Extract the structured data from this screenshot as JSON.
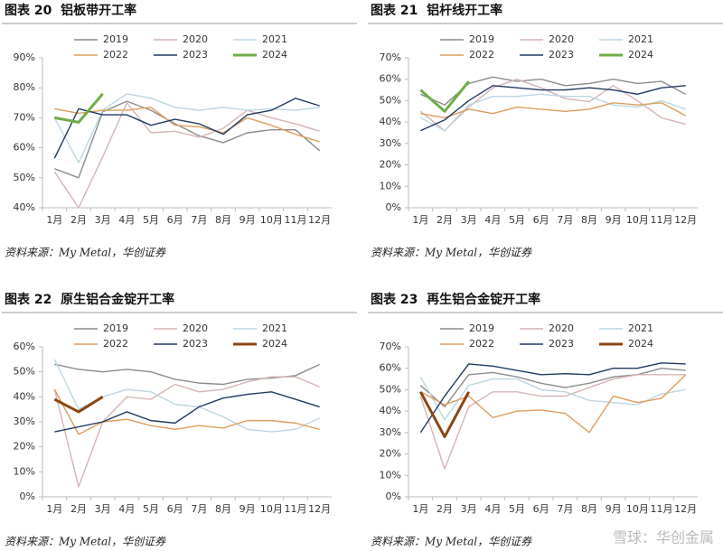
{
  "chart_data": [
    {
      "type": "line",
      "title": "图表 20  铝板带开工率",
      "source": "资料来源：My Metal，华创证券",
      "categories": [
        "1月",
        "2月",
        "3月",
        "4月",
        "5月",
        "6月",
        "7月",
        "8月",
        "9月",
        "10月",
        "11月",
        "12月"
      ],
      "ylim": [
        40,
        90
      ],
      "yticks": [
        {
          "value": 40,
          "label": "40%"
        },
        {
          "value": 50,
          "label": "50%"
        },
        {
          "value": 60,
          "label": "60%"
        },
        {
          "value": 70,
          "label": "70%"
        },
        {
          "value": 80,
          "label": "80%"
        },
        {
          "value": 90,
          "label": "90%"
        }
      ],
      "series": [
        {
          "name": "2019",
          "color": "#8c8c8c",
          "values": [
            53,
            50,
            72,
            75.5,
            72.5,
            68,
            64,
            61.7,
            65,
            66,
            66,
            59
          ]
        },
        {
          "name": "2020",
          "color": "#d6b4b4",
          "values": [
            52,
            40,
            57,
            75,
            65,
            65.5,
            63.5,
            66.5,
            72.5,
            70,
            68,
            65.5
          ]
        },
        {
          "name": "2021",
          "color": "#bcd6e3",
          "values": [
            70,
            55,
            72.5,
            78,
            76.5,
            73.5,
            72.5,
            73.5,
            72.5,
            73,
            72.5,
            73.5
          ]
        },
        {
          "name": "2022",
          "color": "#dc9d5c",
          "values": [
            73,
            71.5,
            72.5,
            72.5,
            73.5,
            67.5,
            67,
            65,
            70,
            67.5,
            64.5,
            62
          ]
        },
        {
          "name": "2023",
          "color": "#1f3b63",
          "values": [
            56.5,
            73,
            71,
            71,
            67.5,
            69.5,
            68,
            64.5,
            71,
            72.5,
            76.5,
            74
          ]
        },
        {
          "name": "2024",
          "color": "#70ad47",
          "values": [
            70,
            68.5,
            78,
            null,
            null,
            null,
            null,
            null,
            null,
            null,
            null,
            null
          ]
        }
      ]
    },
    {
      "type": "line",
      "title": "图表 21  铝杆线开工率",
      "source": "资料来源：My Metal，华创证券",
      "categories": [
        "1月",
        "2月",
        "3月",
        "4月",
        "5月",
        "6月",
        "7月",
        "8月",
        "9月",
        "10月",
        "11月",
        "12月"
      ],
      "ylim": [
        0,
        70
      ],
      "yticks": [
        {
          "value": 0,
          "label": "0%"
        },
        {
          "value": 10,
          "label": "10%"
        },
        {
          "value": 20,
          "label": "20%"
        },
        {
          "value": 30,
          "label": "30%"
        },
        {
          "value": 40,
          "label": "40%"
        },
        {
          "value": 50,
          "label": "50%"
        },
        {
          "value": 60,
          "label": "60%"
        },
        {
          "value": 70,
          "label": "70%"
        }
      ],
      "series": [
        {
          "name": "2019",
          "color": "#8c8c8c",
          "values": [
            53,
            48,
            58,
            61,
            59,
            60,
            57,
            58,
            60,
            58,
            59,
            53
          ]
        },
        {
          "name": "2020",
          "color": "#d6b4b4",
          "values": [
            45,
            36,
            47,
            56,
            60,
            56,
            51,
            49.5,
            57,
            50,
            42,
            39
          ]
        },
        {
          "name": "2021",
          "color": "#bcd6e3",
          "values": [
            42,
            36,
            48,
            52,
            52,
            53,
            52,
            52,
            48,
            47,
            50,
            46
          ]
        },
        {
          "name": "2022",
          "color": "#dc9d5c",
          "values": [
            44,
            42,
            46,
            44,
            47,
            46,
            45,
            46,
            49,
            48,
            49,
            43
          ]
        },
        {
          "name": "2023",
          "color": "#1f3b63",
          "values": [
            36,
            41,
            50,
            57,
            56,
            55,
            55,
            56,
            55,
            53,
            56,
            57
          ]
        },
        {
          "name": "2024",
          "color": "#70ad47",
          "values": [
            55,
            45,
            59,
            null,
            null,
            null,
            null,
            null,
            null,
            null,
            null,
            null
          ]
        }
      ]
    },
    {
      "type": "line",
      "title": "图表 22  原生铝合金锭开工率",
      "source": "资料来源：My Metal，华创证券",
      "categories": [
        "1月",
        "2月",
        "3月",
        "4月",
        "5月",
        "6月",
        "7月",
        "8月",
        "9月",
        "10月",
        "11月",
        "12月"
      ],
      "ylim": [
        0,
        60
      ],
      "yticks": [
        {
          "value": 0,
          "label": "0%"
        },
        {
          "value": 10,
          "label": "10%"
        },
        {
          "value": 20,
          "label": "20%"
        },
        {
          "value": 30,
          "label": "30%"
        },
        {
          "value": 40,
          "label": "40%"
        },
        {
          "value": 50,
          "label": "50%"
        },
        {
          "value": 60,
          "label": "60%"
        }
      ],
      "series": [
        {
          "name": "2019",
          "color": "#8c8c8c",
          "values": [
            53,
            51,
            50,
            51,
            50,
            47,
            45.5,
            45,
            47,
            47.5,
            48.5,
            53
          ]
        },
        {
          "name": "2020",
          "color": "#d6b4b4",
          "values": [
            43,
            4,
            30,
            40,
            39,
            45,
            42,
            43,
            46,
            48,
            48,
            44
          ]
        },
        {
          "name": "2021",
          "color": "#bcd6e3",
          "values": [
            55,
            35,
            40,
            43,
            42,
            37,
            36,
            32,
            27,
            26,
            27,
            31.5
          ]
        },
        {
          "name": "2022",
          "color": "#dc9d5c",
          "values": [
            43,
            25,
            30,
            31,
            28.5,
            27,
            28.5,
            27.5,
            30.5,
            30.5,
            29.5,
            27
          ]
        },
        {
          "name": "2023",
          "color": "#1f3b63",
          "values": [
            26,
            28,
            30,
            34,
            30.5,
            29.5,
            36,
            39.5,
            41,
            42,
            39,
            36
          ]
        },
        {
          "name": "2024",
          "color": "#8b4513",
          "values": [
            39,
            34,
            40,
            null,
            null,
            null,
            null,
            null,
            null,
            null,
            null,
            null
          ]
        }
      ]
    },
    {
      "type": "line",
      "title": "图表 23  再生铝合金锭开工率",
      "source": "资料来源：My Metal，华创证券",
      "categories": [
        "1月",
        "2月",
        "3月",
        "4月",
        "5月",
        "6月",
        "7月",
        "8月",
        "9月",
        "10月",
        "11月",
        "12月"
      ],
      "ylim": [
        0,
        70
      ],
      "yticks": [
        {
          "value": 0,
          "label": "0%"
        },
        {
          "value": 10,
          "label": "10%"
        },
        {
          "value": 20,
          "label": "20%"
        },
        {
          "value": 30,
          "label": "30%"
        },
        {
          "value": 40,
          "label": "40%"
        },
        {
          "value": 50,
          "label": "50%"
        },
        {
          "value": 60,
          "label": "60%"
        },
        {
          "value": 70,
          "label": "70%"
        }
      ],
      "series": [
        {
          "name": "2019",
          "color": "#8c8c8c",
          "values": [
            52,
            42,
            57,
            58,
            56,
            53,
            51,
            53,
            56,
            57,
            60,
            59
          ]
        },
        {
          "name": "2020",
          "color": "#d6b4b4",
          "values": [
            47,
            13,
            42,
            49,
            49,
            47,
            47,
            51,
            55,
            57,
            57,
            57
          ]
        },
        {
          "name": "2021",
          "color": "#bcd6e3",
          "values": [
            56,
            36,
            52,
            55,
            55,
            50,
            49,
            45,
            44,
            43,
            48,
            50
          ]
        },
        {
          "name": "2022",
          "color": "#dc9d5c",
          "values": [
            49,
            43,
            47,
            37,
            40,
            40.5,
            39,
            30,
            47,
            44,
            46,
            57
          ]
        },
        {
          "name": "2023",
          "color": "#1f3b63",
          "values": [
            30,
            47,
            62,
            61,
            59,
            57,
            57.5,
            57,
            60,
            60,
            62.5,
            62
          ]
        },
        {
          "name": "2024",
          "color": "#8b4513",
          "values": [
            49,
            28,
            49,
            null,
            null,
            null,
            null,
            null,
            null,
            null,
            null,
            null
          ]
        }
      ]
    }
  ],
  "watermark": "雪球：华创金属"
}
